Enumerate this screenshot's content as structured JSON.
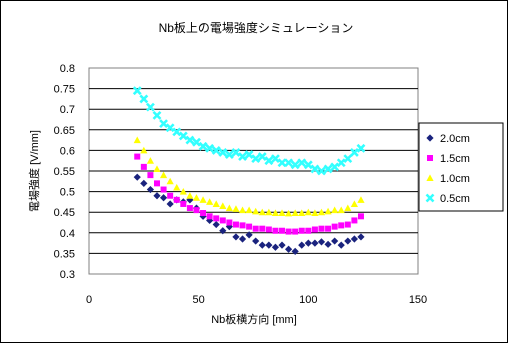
{
  "chart_data": {
    "type": "scatter",
    "title": "Nb板上の電場強度シミュレーション",
    "xlabel": "Nb板横方向 [mm]",
    "ylabel": "電場強度 [V/mm]",
    "xlim": [
      0,
      150
    ],
    "ylim": [
      0.3,
      0.8
    ],
    "x_ticks": [
      "0",
      "50",
      "100",
      "150"
    ],
    "y_ticks": [
      "0.3",
      "0.35",
      "0.4",
      "0.45",
      "0.5",
      "0.55",
      "0.6",
      "0.65",
      "0.7",
      "0.75",
      "0.8"
    ],
    "grid": true,
    "legend_position": "right",
    "x": [
      22,
      25,
      28,
      31,
      34,
      37,
      40,
      43,
      46,
      49,
      52,
      55,
      58,
      61,
      64,
      67,
      70,
      73,
      76,
      79,
      82,
      85,
      88,
      91,
      94,
      97,
      100,
      103,
      106,
      109,
      112,
      115,
      118,
      121,
      124
    ],
    "series": [
      {
        "name": "2.0cm",
        "color": "#1a237e",
        "marker": "diamond",
        "values": [
          0.535,
          0.52,
          0.505,
          0.49,
          0.485,
          0.47,
          0.48,
          0.475,
          0.48,
          0.46,
          0.44,
          0.43,
          0.42,
          0.405,
          0.415,
          0.39,
          0.385,
          0.395,
          0.38,
          0.37,
          0.37,
          0.365,
          0.37,
          0.36,
          0.355,
          0.37,
          0.375,
          0.375,
          0.378,
          0.372,
          0.38,
          0.37,
          0.38,
          0.385,
          0.39
        ]
      },
      {
        "name": "1.5cm",
        "color": "#ff00ff",
        "marker": "square",
        "values": [
          0.585,
          0.56,
          0.54,
          0.52,
          0.505,
          0.49,
          0.48,
          0.47,
          0.46,
          0.455,
          0.448,
          0.44,
          0.435,
          0.43,
          0.425,
          0.42,
          0.418,
          0.415,
          0.41,
          0.41,
          0.408,
          0.405,
          0.405,
          0.403,
          0.403,
          0.405,
          0.405,
          0.408,
          0.41,
          0.41,
          0.415,
          0.418,
          0.42,
          0.43,
          0.44
        ]
      },
      {
        "name": "1.0cm",
        "color": "#ffff00",
        "marker": "triangle",
        "values": [
          0.625,
          0.6,
          0.575,
          0.555,
          0.54,
          0.525,
          0.51,
          0.5,
          0.49,
          0.485,
          0.48,
          0.475,
          0.47,
          0.465,
          0.46,
          0.458,
          0.455,
          0.455,
          0.452,
          0.45,
          0.45,
          0.448,
          0.448,
          0.447,
          0.448,
          0.448,
          0.45,
          0.448,
          0.45,
          0.452,
          0.455,
          0.455,
          0.46,
          0.47,
          0.48
        ]
      },
      {
        "name": "0.5cm",
        "color": "#33ffff",
        "marker": "x",
        "values": [
          0.745,
          0.725,
          0.705,
          0.685,
          0.665,
          0.655,
          0.645,
          0.635,
          0.625,
          0.62,
          0.61,
          0.605,
          0.6,
          0.595,
          0.59,
          0.595,
          0.585,
          0.59,
          0.58,
          0.585,
          0.575,
          0.58,
          0.57,
          0.57,
          0.565,
          0.57,
          0.565,
          0.555,
          0.55,
          0.555,
          0.56,
          0.57,
          0.58,
          0.595,
          0.605
        ]
      }
    ]
  }
}
